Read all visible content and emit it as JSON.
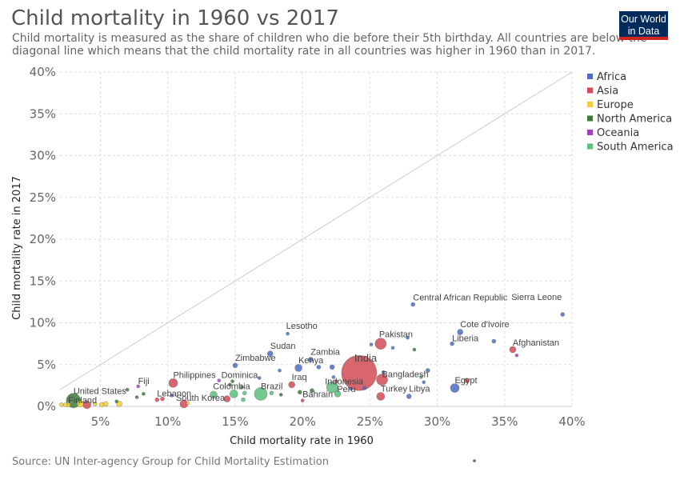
{
  "header": {
    "title": "Child mortality in 1960 vs 2017",
    "subtitle": "Child mortality is measured as the share of children who die before their 5th birthday. All countries are below the diagonal line which means that the child mortality rate in all countries was higher in 1960 than in 2017.",
    "logo_line1": "Our World",
    "logo_line2": "in Data"
  },
  "footer": {
    "source": "Source: UN Inter-agency Group for Child Mortality Estimation"
  },
  "chart_data": {
    "type": "scatter",
    "title": "Child mortality in 1960 vs 2017",
    "xlabel": "Child mortality rate in 1960",
    "ylabel": "Child mortality rate in 2017",
    "xlim": [
      2,
      40
    ],
    "ylim": [
      0,
      40
    ],
    "x_ticks": [
      5,
      10,
      15,
      20,
      25,
      30,
      35,
      40
    ],
    "y_ticks": [
      0,
      5,
      10,
      15,
      20,
      25,
      30,
      35,
      40
    ],
    "x_tick_labels": [
      "5%",
      "10%",
      "15%",
      "20%",
      "25%",
      "30%",
      "35%",
      "40%"
    ],
    "y_tick_labels": [
      "0%",
      "5%",
      "10%",
      "15%",
      "20%",
      "25%",
      "30%",
      "35%",
      "40%"
    ],
    "grid": true,
    "legend_position": "right",
    "reference_line": "diagonal",
    "series": [
      {
        "name": "Africa",
        "color": "#4c6ec2"
      },
      {
        "name": "Asia",
        "color": "#d24a55"
      },
      {
        "name": "Europe",
        "color": "#f2cf3a"
      },
      {
        "name": "North America",
        "color": "#3e7a3b"
      },
      {
        "name": "Oceania",
        "color": "#a43fc2"
      },
      {
        "name": "South America",
        "color": "#5cbf7c"
      }
    ],
    "points": [
      {
        "label": "India",
        "x": 24.2,
        "y": 4.0,
        "r": 22,
        "s": 1
      },
      {
        "label": "Central African Republic",
        "x": 28.2,
        "y": 12.2,
        "r": 2.5,
        "s": 0
      },
      {
        "label": "Sierra Leone",
        "x": 39.3,
        "y": 11.0,
        "r": 2.5,
        "s": 0
      },
      {
        "label": "Pakistan",
        "x": 25.8,
        "y": 7.5,
        "r": 7,
        "s": 1
      },
      {
        "label": "Cote d'Ivoire",
        "x": 31.7,
        "y": 8.9,
        "r": 3.5,
        "s": 0
      },
      {
        "label": "Liberia",
        "x": 31.1,
        "y": 7.5,
        "r": 2.5,
        "s": 0
      },
      {
        "label": "Afghanistan",
        "x": 35.6,
        "y": 6.8,
        "r": 4,
        "s": 1
      },
      {
        "label": "Lesotho",
        "x": 18.9,
        "y": 8.7,
        "r": 2,
        "s": 0
      },
      {
        "label": "Sudan",
        "x": 17.6,
        "y": 6.3,
        "r": 3.5,
        "s": 0
      },
      {
        "label": "Zambia",
        "x": 20.6,
        "y": 5.6,
        "r": 3,
        "s": 0
      },
      {
        "label": "Zimbabwe",
        "x": 15.0,
        "y": 4.9,
        "r": 3,
        "s": 0
      },
      {
        "label": "Kenya",
        "x": 19.7,
        "y": 4.6,
        "r": 4.5,
        "s": 0
      },
      {
        "label": "Indonesia",
        "x": 22.5,
        "y": 3.0,
        "r": 2,
        "s": 1
      },
      {
        "label": "Bangladesh",
        "x": 25.9,
        "y": 3.2,
        "r": 7,
        "s": 1
      },
      {
        "label": "Egypt",
        "x": 31.3,
        "y": 2.2,
        "r": 5.5,
        "s": 0
      },
      {
        "label": "Turkey",
        "x": 25.8,
        "y": 1.2,
        "r": 5,
        "s": 1
      },
      {
        "label": "Libya",
        "x": 27.9,
        "y": 1.2,
        "r": 3,
        "s": 0
      },
      {
        "label": "Peru",
        "x": 22.2,
        "y": 2.3,
        "r": 7,
        "s": 5
      },
      {
        "label": "Iraq",
        "x": 19.2,
        "y": 2.6,
        "r": 4,
        "s": 1
      },
      {
        "label": "Bahrain",
        "x": 20.0,
        "y": 0.7,
        "r": 2,
        "s": 1
      },
      {
        "label": "Brazil",
        "x": 16.9,
        "y": 1.5,
        "r": 8,
        "s": 5
      },
      {
        "label": "Colombia",
        "x": 14.9,
        "y": 1.5,
        "r": 5,
        "s": 5
      },
      {
        "label": "Dominica",
        "x": 14.8,
        "y": 3.0,
        "r": 2,
        "s": 3
      },
      {
        "label": "Philippines",
        "x": 10.4,
        "y": 2.8,
        "r": 5.5,
        "s": 1
      },
      {
        "label": "Fiji",
        "x": 7.8,
        "y": 2.4,
        "r": 2,
        "s": 4
      },
      {
        "label": "Lebanon",
        "x": 9.2,
        "y": 0.8,
        "r": 2.5,
        "s": 1
      },
      {
        "label": "South Korea",
        "x": 11.2,
        "y": 0.3,
        "r": 5,
        "s": 1
      },
      {
        "label": "United States",
        "x": 3.0,
        "y": 0.7,
        "r": 9,
        "s": 3
      },
      {
        "label": "Finland",
        "x": 2.6,
        "y": 0.2,
        "r": 3,
        "s": 2
      },
      {
        "label": "",
        "x": 4.0,
        "y": 0.2,
        "r": 5,
        "s": 1
      },
      {
        "label": "",
        "x": 3.5,
        "y": 0.3,
        "r": 4,
        "s": 2
      },
      {
        "label": "",
        "x": 2.1,
        "y": 0.2,
        "r": 2.5,
        "s": 2
      },
      {
        "label": "",
        "x": 2.4,
        "y": 0.2,
        "r": 2.5,
        "s": 2
      },
      {
        "label": "",
        "x": 5.1,
        "y": 0.2,
        "r": 3,
        "s": 2
      },
      {
        "label": "",
        "x": 5.4,
        "y": 0.3,
        "r": 3,
        "s": 2
      },
      {
        "label": "",
        "x": 6.4,
        "y": 0.3,
        "r": 3.5,
        "s": 2
      },
      {
        "label": "",
        "x": 4.6,
        "y": 0.3,
        "r": 2.5,
        "s": 2
      },
      {
        "label": "",
        "x": 6.2,
        "y": 0.6,
        "r": 2,
        "s": 3
      },
      {
        "label": "",
        "x": 10.3,
        "y": 1.3,
        "r": 2,
        "s": 0
      },
      {
        "label": "",
        "x": 9.6,
        "y": 0.9,
        "r": 2.5,
        "s": 1
      },
      {
        "label": "",
        "x": 7.7,
        "y": 1.1,
        "r": 2,
        "s": 3
      },
      {
        "label": "",
        "x": 8.2,
        "y": 1.5,
        "r": 2,
        "s": 3
      },
      {
        "label": "",
        "x": 7.0,
        "y": 2.0,
        "r": 2,
        "s": 3
      },
      {
        "label": "",
        "x": 11.5,
        "y": 0.4,
        "r": 2,
        "s": 2
      },
      {
        "label": "",
        "x": 13.4,
        "y": 1.4,
        "r": 4.5,
        "s": 5
      },
      {
        "label": "",
        "x": 13.8,
        "y": 3.1,
        "r": 2,
        "s": 4
      },
      {
        "label": "",
        "x": 14.6,
        "y": 2.6,
        "r": 2,
        "s": 3
      },
      {
        "label": "",
        "x": 14.4,
        "y": 0.9,
        "r": 4,
        "s": 1
      },
      {
        "label": "",
        "x": 15.7,
        "y": 1.6,
        "r": 2.5,
        "s": 5
      },
      {
        "label": "",
        "x": 15.6,
        "y": 0.8,
        "r": 2.5,
        "s": 5
      },
      {
        "label": "",
        "x": 15.5,
        "y": 2.3,
        "r": 2,
        "s": 3
      },
      {
        "label": "",
        "x": 16.8,
        "y": 3.4,
        "r": 2,
        "s": 0
      },
      {
        "label": "",
        "x": 17.7,
        "y": 1.6,
        "r": 2.5,
        "s": 5
      },
      {
        "label": "",
        "x": 18.4,
        "y": 1.4,
        "r": 2,
        "s": 3
      },
      {
        "label": "",
        "x": 18.3,
        "y": 4.3,
        "r": 2,
        "s": 0
      },
      {
        "label": "",
        "x": 19.8,
        "y": 1.7,
        "r": 2.5,
        "s": 3
      },
      {
        "label": "",
        "x": 20.7,
        "y": 1.9,
        "r": 2.5,
        "s": 3
      },
      {
        "label": "",
        "x": 21.2,
        "y": 4.7,
        "r": 2.5,
        "s": 0
      },
      {
        "label": "",
        "x": 22.2,
        "y": 4.7,
        "r": 3,
        "s": 0
      },
      {
        "label": "",
        "x": 22.3,
        "y": 3.5,
        "r": 2,
        "s": 0
      },
      {
        "label": "",
        "x": 22.6,
        "y": 1.5,
        "r": 4,
        "s": 5
      },
      {
        "label": "",
        "x": 23.6,
        "y": 2.1,
        "r": 2,
        "s": 0
      },
      {
        "label": "",
        "x": 24.6,
        "y": 2.2,
        "r": 2.5,
        "s": 0
      },
      {
        "label": "",
        "x": 25.1,
        "y": 7.4,
        "r": 2,
        "s": 0
      },
      {
        "label": "",
        "x": 26.7,
        "y": 7.0,
        "r": 2,
        "s": 0
      },
      {
        "label": "",
        "x": 27.8,
        "y": 8.2,
        "r": 2,
        "s": 0
      },
      {
        "label": "",
        "x": 28.3,
        "y": 6.8,
        "r": 2,
        "s": 3
      },
      {
        "label": "",
        "x": 28.8,
        "y": 3.5,
        "r": 2,
        "s": 5
      },
      {
        "label": "",
        "x": 29.3,
        "y": 4.3,
        "r": 2.5,
        "s": 0
      },
      {
        "label": "",
        "x": 29.0,
        "y": 2.9,
        "r": 2,
        "s": 0
      },
      {
        "label": "",
        "x": 32.2,
        "y": 3.1,
        "r": 3,
        "s": 1
      },
      {
        "label": "",
        "x": 34.2,
        "y": 7.8,
        "r": 2.5,
        "s": 0
      },
      {
        "label": "",
        "x": 35.9,
        "y": 6.1,
        "r": 2,
        "s": 4
      },
      {
        "label": "",
        "x": 26.0,
        "y": 4.1,
        "r": 2,
        "s": 0
      }
    ]
  }
}
